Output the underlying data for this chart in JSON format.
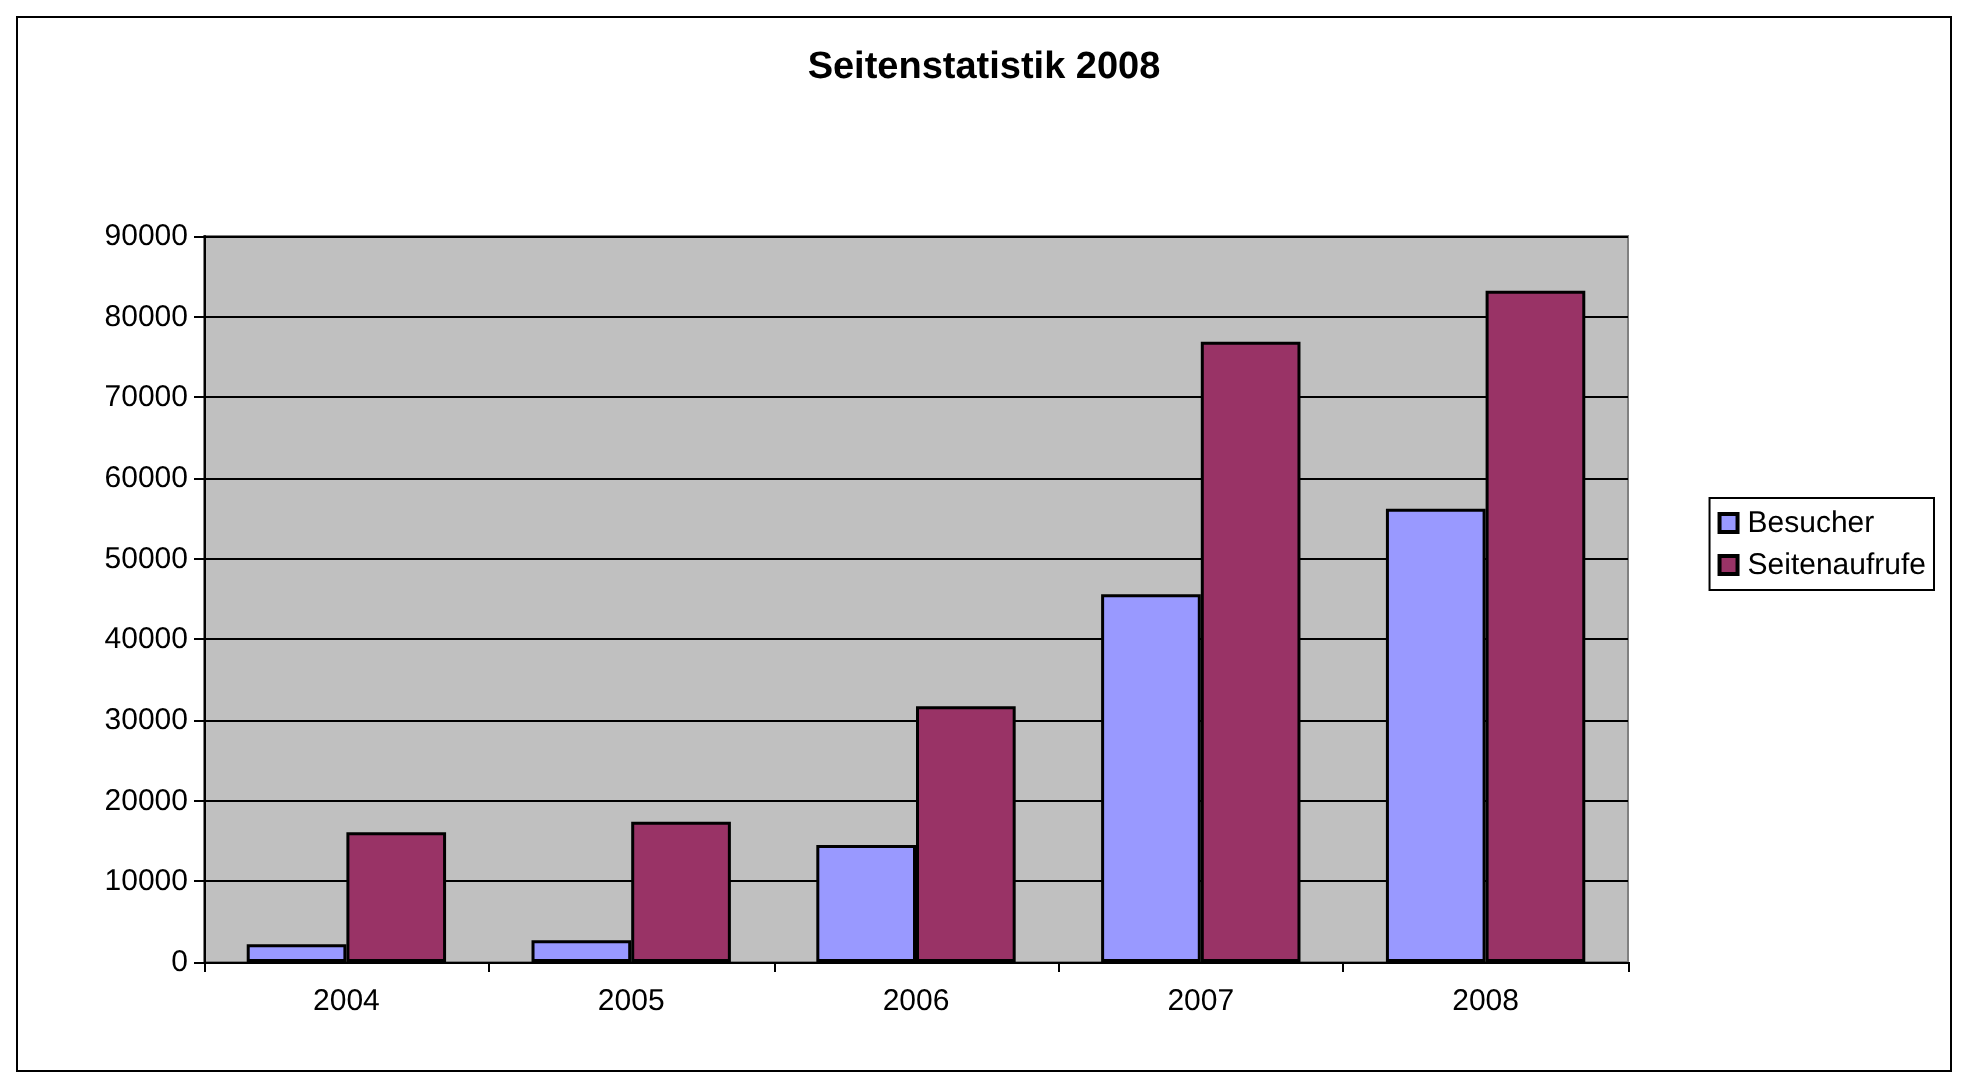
{
  "chart_data": {
    "type": "bar",
    "title": "Seitenstatistik 2008",
    "categories": [
      "2004",
      "2005",
      "2006",
      "2007",
      "2008"
    ],
    "series": [
      {
        "name": "Besucher",
        "color": "#9999ff",
        "values": [
          2200,
          2700,
          14500,
          45600,
          56200
        ]
      },
      {
        "name": "Seitenaufrufe",
        "color": "#993366",
        "values": [
          16100,
          17400,
          31700,
          76900,
          83200
        ]
      }
    ],
    "ylim": [
      0,
      90000
    ],
    "yticks": [
      0,
      10000,
      20000,
      30000,
      40000,
      50000,
      60000,
      70000,
      80000,
      90000
    ],
    "grid": "y",
    "legend": "right"
  }
}
